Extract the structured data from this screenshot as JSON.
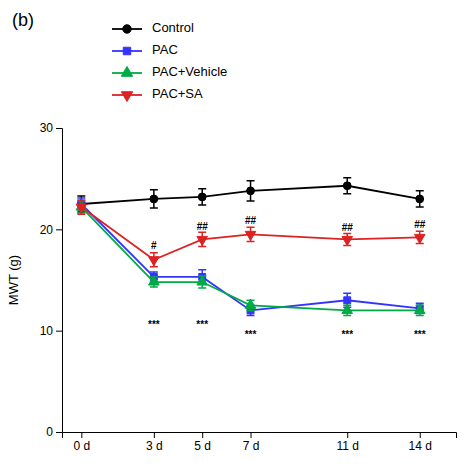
{
  "chart_data": {
    "type": "line",
    "title": "(b)",
    "y_label": "MWT (g)",
    "x": [
      0,
      3,
      5,
      7,
      11,
      14
    ],
    "xlim": [
      -0.8,
      15.5
    ],
    "xticks": [
      {
        "value": 0,
        "label": "0 d"
      },
      {
        "value": 3,
        "label": "3 d"
      },
      {
        "value": 5,
        "label": "5 d"
      },
      {
        "value": 7,
        "label": "7 d"
      },
      {
        "value": 11,
        "label": "11 d"
      },
      {
        "value": 14,
        "label": "14 d"
      }
    ],
    "ylim": [
      0,
      30
    ],
    "yticks": [
      0,
      10,
      20,
      30
    ],
    "legend": "top",
    "series": [
      {
        "name": "Control",
        "color": "#000000",
        "marker": "circle",
        "values": [
          22.5,
          23.0,
          23.2,
          23.8,
          24.3,
          23.0
        ],
        "errors": [
          0.8,
          0.9,
          0.8,
          1.0,
          0.8,
          0.8
        ]
      },
      {
        "name": "PAC",
        "color": "#3333FF",
        "marker": "square",
        "values": [
          22.5,
          15.3,
          15.3,
          12.0,
          13.0,
          12.2
        ],
        "errors": [
          0.6,
          0.5,
          0.7,
          0.5,
          0.7,
          0.5
        ]
      },
      {
        "name": "PAC+Vehicle",
        "color": "#00AA44",
        "marker": "triangle-up",
        "values": [
          22.2,
          14.8,
          14.8,
          12.5,
          12.0,
          12.0
        ],
        "errors": [
          0.6,
          0.5,
          0.6,
          0.5,
          0.5,
          0.5
        ]
      },
      {
        "name": "PAC+SA",
        "color": "#DD2222",
        "marker": "triangle-down",
        "values": [
          22.2,
          17.0,
          19.0,
          19.5,
          19.0,
          19.2
        ],
        "errors": [
          0.7,
          0.7,
          0.7,
          0.7,
          0.6,
          0.6
        ]
      }
    ],
    "annotations": [
      {
        "text": "***",
        "x": 3,
        "y": 10.5
      },
      {
        "text": "***",
        "x": 5,
        "y": 10.5
      },
      {
        "text": "***",
        "x": 7,
        "y": 9.5
      },
      {
        "text": "***",
        "x": 11,
        "y": 9.5
      },
      {
        "text": "***",
        "x": 14,
        "y": 9.5
      },
      {
        "text": "#",
        "x": 3,
        "y": 18.3
      },
      {
        "text": "##",
        "x": 5,
        "y": 20.2
      },
      {
        "text": "##",
        "x": 7,
        "y": 20.8
      },
      {
        "text": "##",
        "x": 11,
        "y": 20.1
      },
      {
        "text": "##",
        "x": 14,
        "y": 20.4
      }
    ]
  }
}
